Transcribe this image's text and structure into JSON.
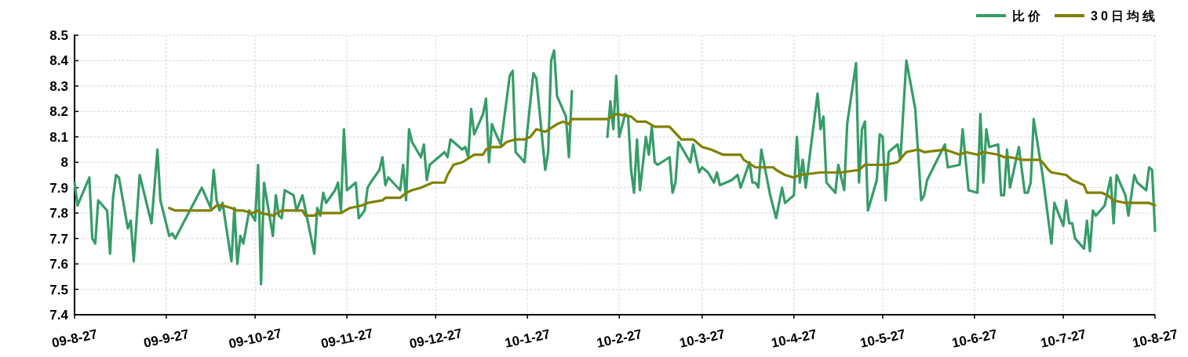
{
  "chart_data": {
    "type": "line",
    "xlim": [
      "2009-08-27",
      "2010-08-27"
    ],
    "xticks": [
      {
        "value": "2009-08-27",
        "label": "09-8-27"
      },
      {
        "value": "2009-09-27",
        "label": "09-9-27"
      },
      {
        "value": "2009-10-27",
        "label": "09-10-27"
      },
      {
        "value": "2009-11-27",
        "label": "09-11-27"
      },
      {
        "value": "2009-12-27",
        "label": "09-12-27"
      },
      {
        "value": "2010-01-27",
        "label": "10-1-27"
      },
      {
        "value": "2010-02-27",
        "label": "10-2-27"
      },
      {
        "value": "2010-03-27",
        "label": "10-3-27"
      },
      {
        "value": "2010-04-27",
        "label": "10-4-27"
      },
      {
        "value": "2010-05-27",
        "label": "10-5-27"
      },
      {
        "value": "2010-06-27",
        "label": "10-6-27"
      },
      {
        "value": "2010-07-27",
        "label": "10-7-27"
      },
      {
        "value": "2010-08-27",
        "label": "10-8-27"
      }
    ],
    "ylim": [
      7.4,
      8.5
    ],
    "yticks": [
      7.4,
      7.5,
      7.6,
      7.7,
      7.8,
      7.9,
      8,
      8.1,
      8.2,
      8.3,
      8.4,
      8.5
    ],
    "grid": true,
    "legend": "top right",
    "marker": "none",
    "line_style": "solid",
    "series": [
      {
        "name": "比价",
        "color": "#369c68",
        "x": [
          "2009-08-27",
          "2009-08-28",
          "2009-09-01",
          "2009-09-02",
          "2009-09-03",
          "2009-09-04",
          "2009-09-07",
          "2009-09-08",
          "2009-09-09",
          "2009-09-10",
          "2009-09-11",
          "2009-09-14",
          "2009-09-15",
          "2009-09-16",
          "2009-09-18",
          "2009-09-22",
          "2009-09-24",
          "2009-09-25",
          "2009-09-28",
          "2009-09-29",
          "2009-09-30",
          "2009-10-09",
          "2009-10-12",
          "2009-10-13",
          "2009-10-14",
          "2009-10-15",
          "2009-10-16",
          "2009-10-19",
          "2009-10-20",
          "2009-10-21",
          "2009-10-22",
          "2009-10-23",
          "2009-10-25",
          "2009-10-27",
          "2009-10-28",
          "2009-10-29",
          "2009-10-30",
          "2009-11-02",
          "2009-11-03",
          "2009-11-04",
          "2009-11-05",
          "2009-11-06",
          "2009-11-09",
          "2009-11-10",
          "2009-11-12",
          "2009-11-16",
          "2009-11-17",
          "2009-11-18",
          "2009-11-19",
          "2009-11-20",
          "2009-11-23",
          "2009-11-24",
          "2009-11-25",
          "2009-11-26",
          "2009-11-27",
          "2009-11-30",
          "2009-12-01",
          "2009-12-03",
          "2009-12-04",
          "2009-12-05",
          "2009-12-08",
          "2009-12-09",
          "2009-12-10",
          "2009-12-11",
          "2009-12-15",
          "2009-12-16",
          "2009-12-17",
          "2009-12-18",
          "2009-12-19",
          "2009-12-22",
          "2009-12-23",
          "2009-12-24",
          "2009-12-25",
          "2009-12-30",
          "2009-12-31",
          "2010-01-01",
          "2010-01-05",
          "2010-01-06",
          "2010-01-07",
          "2010-01-08",
          "2010-01-09",
          "2010-01-12",
          "2010-01-13",
          "2010-01-14",
          "2010-01-15",
          "2010-01-16",
          "2010-01-18",
          "2010-01-19",
          "2010-01-21",
          "2010-01-22",
          "2010-01-23",
          "2010-01-26",
          "2010-01-27",
          "2010-01-29",
          "2010-01-30",
          "2010-02-02",
          "2010-02-03",
          "2010-02-04",
          "2010-02-05",
          "2010-02-06",
          "2010-02-09",
          "2010-02-10",
          "2010-02-11",
          "2010-02-17",
          "2010-02-23",
          "2010-02-24",
          "2010-02-25",
          "2010-02-26",
          "2010-02-27",
          "2010-03-01",
          "2010-03-02",
          "2010-03-03",
          "2010-03-04",
          "2010-03-05",
          "2010-03-06",
          "2010-03-08",
          "2010-03-09",
          "2010-03-10",
          "2010-03-11",
          "2010-03-12",
          "2010-03-16",
          "2010-03-17",
          "2010-03-18",
          "2010-03-19",
          "2010-03-23",
          "2010-03-24",
          "2010-03-26",
          "2010-03-27",
          "2010-03-29",
          "2010-03-31",
          "2010-04-01",
          "2010-04-02",
          "2010-04-06",
          "2010-04-08",
          "2010-04-09",
          "2010-04-12",
          "2010-04-13",
          "2010-04-14",
          "2010-04-15",
          "2010-04-16",
          "2010-04-19",
          "2010-04-21",
          "2010-04-23",
          "2010-04-24",
          "2010-04-27",
          "2010-04-28",
          "2010-04-29",
          "2010-04-30",
          "2010-05-01",
          "2010-05-05",
          "2010-05-06",
          "2010-05-07",
          "2010-05-08",
          "2010-05-11",
          "2010-05-12",
          "2010-05-14",
          "2010-05-15",
          "2010-05-18",
          "2010-05-19",
          "2010-05-20",
          "2010-05-21",
          "2010-05-22",
          "2010-05-25",
          "2010-05-26",
          "2010-05-27",
          "2010-05-28",
          "2010-05-29",
          "2010-06-01",
          "2010-06-02",
          "2010-06-03",
          "2010-06-04",
          "2010-06-07",
          "2010-06-09",
          "2010-06-10",
          "2010-06-11",
          "2010-06-17",
          "2010-06-18",
          "2010-06-22",
          "2010-06-23",
          "2010-06-25",
          "2010-06-28",
          "2010-06-29",
          "2010-06-30",
          "2010-07-01",
          "2010-07-02",
          "2010-07-05",
          "2010-07-06",
          "2010-07-07",
          "2010-07-08",
          "2010-07-09",
          "2010-07-12",
          "2010-07-14",
          "2010-07-15",
          "2010-07-16",
          "2010-07-17",
          "2010-07-20",
          "2010-07-23",
          "2010-07-24",
          "2010-07-27",
          "2010-07-28",
          "2010-07-29",
          "2010-07-30",
          "2010-07-31",
          "2010-08-03",
          "2010-08-04",
          "2010-08-05",
          "2010-08-06",
          "2010-08-07",
          "2010-08-10",
          "2010-08-12",
          "2010-08-13",
          "2010-08-14",
          "2010-08-17",
          "2010-08-18",
          "2010-08-20",
          "2010-08-21",
          "2010-08-24",
          "2010-08-25",
          "2010-08-26",
          "2010-08-27"
        ],
        "values": [
          7.92,
          7.83,
          7.94,
          7.7,
          7.68,
          7.85,
          7.81,
          7.64,
          7.86,
          7.95,
          7.94,
          7.74,
          7.77,
          7.61,
          7.95,
          7.76,
          8.05,
          7.85,
          7.71,
          7.72,
          7.7,
          7.9,
          7.82,
          7.97,
          7.85,
          7.81,
          7.84,
          7.61,
          7.82,
          7.6,
          7.71,
          7.68,
          7.81,
          7.77,
          7.99,
          7.52,
          7.92,
          7.71,
          7.87,
          7.79,
          7.78,
          7.89,
          7.87,
          7.81,
          7.87,
          7.64,
          7.82,
          7.79,
          7.88,
          7.84,
          7.89,
          7.92,
          7.81,
          8.13,
          7.89,
          7.92,
          7.78,
          7.81,
          7.9,
          7.92,
          7.97,
          8.02,
          7.91,
          7.94,
          7.89,
          7.99,
          7.85,
          8.13,
          8.08,
          8.02,
          8.07,
          7.93,
          7.99,
          8.04,
          8.02,
          8.09,
          8.05,
          8.06,
          8.02,
          8.21,
          8.11,
          8.19,
          8.25,
          8.0,
          8.15,
          8.12,
          8.07,
          8.16,
          8.34,
          8.36,
          8.04,
          8.0,
          8.13,
          8.35,
          8.33,
          7.97,
          8.04,
          8.4,
          8.44,
          8.26,
          8.18,
          8.02,
          8.28,
          null,
          8.1,
          8.24,
          8.13,
          8.34,
          8.1,
          8.19,
          8.18,
          7.97,
          7.88,
          8.09,
          7.89,
          8.1,
          8.03,
          8.14,
          8.0,
          7.99,
          8.02,
          7.88,
          7.92,
          8.08,
          8.0,
          8.07,
          7.96,
          7.98,
          7.96,
          7.92,
          7.96,
          7.91,
          7.93,
          7.95,
          7.9,
          8.0,
          7.92,
          7.92,
          7.9,
          8.05,
          7.87,
          7.78,
          7.9,
          7.84,
          7.87,
          8.1,
          7.92,
          8.01,
          7.9,
          8.27,
          8.13,
          8.18,
          7.92,
          7.88,
          7.99,
          7.89,
          8.15,
          8.39,
          7.92,
          8.13,
          8.16,
          7.81,
          7.93,
          8.11,
          8.1,
          7.85,
          8.04,
          8.07,
          8.01,
          8.21,
          8.4,
          8.21,
          7.85,
          7.87,
          7.93,
          8.07,
          7.98,
          7.99,
          8.13,
          7.89,
          7.88,
          8.19,
          7.92,
          8.13,
          8.06,
          8.07,
          7.87,
          7.87,
          8.05,
          7.9,
          8.06,
          7.88,
          7.88,
          7.92,
          8.17,
          7.95,
          7.68,
          7.84,
          7.75,
          7.85,
          7.76,
          7.76,
          7.7,
          7.66,
          7.77,
          7.65,
          7.81,
          7.79,
          7.83,
          7.94,
          7.76,
          7.95,
          7.87,
          7.79,
          7.95,
          7.92,
          7.89,
          7.98,
          7.97,
          7.73
        ]
      },
      {
        "name": "30日均线",
        "color": "#808000",
        "x": [
          "2009-09-28",
          "2009-09-30",
          "2009-10-12",
          "2009-10-14",
          "2009-10-16",
          "2009-10-19",
          "2009-10-21",
          "2009-10-23",
          "2009-10-26",
          "2009-10-28",
          "2009-10-29",
          "2009-11-02",
          "2009-11-05",
          "2009-11-12",
          "2009-11-13",
          "2009-11-16",
          "2009-11-17",
          "2009-11-25",
          "2009-11-28",
          "2009-12-02",
          "2009-12-04",
          "2009-12-09",
          "2009-12-10",
          "2009-12-15",
          "2009-12-17",
          "2009-12-19",
          "2009-12-22",
          "2009-12-24",
          "2009-12-26",
          "2009-12-30",
          "2009-12-31",
          "2010-01-01",
          "2010-01-02",
          "2010-01-05",
          "2010-01-09",
          "2010-01-12",
          "2010-01-13",
          "2010-01-15",
          "2010-01-18",
          "2010-01-20",
          "2010-01-23",
          "2010-01-26",
          "2010-01-28",
          "2010-01-30",
          "2010-02-02",
          "2010-02-06",
          "2010-02-08",
          "2010-02-10",
          "2010-02-11",
          "2010-02-23",
          "2010-02-26",
          "2010-03-03",
          "2010-03-05",
          "2010-03-08",
          "2010-03-11",
          "2010-03-16",
          "2010-03-20",
          "2010-03-24",
          "2010-03-27",
          "2010-03-30",
          "2010-04-03",
          "2010-04-09",
          "2010-04-10",
          "2010-04-14",
          "2010-04-20",
          "2010-04-21",
          "2010-04-24",
          "2010-04-27",
          "2010-04-29",
          "2010-05-06",
          "2010-05-13",
          "2010-05-19",
          "2010-05-21",
          "2010-05-25",
          "2010-05-28",
          "2010-06-01",
          "2010-06-04",
          "2010-06-08",
          "2010-06-10",
          "2010-06-17",
          "2010-06-22",
          "2010-06-24",
          "2010-06-28",
          "2010-06-30",
          "2010-07-05",
          "2010-07-07",
          "2010-07-09",
          "2010-07-13",
          "2010-07-19",
          "2010-07-20",
          "2010-07-22",
          "2010-07-23",
          "2010-07-28",
          "2010-07-30",
          "2010-08-03",
          "2010-08-04",
          "2010-08-09",
          "2010-08-11",
          "2010-08-13",
          "2010-08-17",
          "2010-08-25",
          "2010-08-27"
        ],
        "values": [
          7.82,
          7.81,
          7.81,
          7.83,
          7.83,
          7.82,
          7.81,
          7.81,
          7.8,
          7.81,
          7.8,
          7.79,
          7.81,
          7.81,
          7.79,
          7.79,
          7.8,
          7.8,
          7.82,
          7.83,
          7.84,
          7.85,
          7.86,
          7.86,
          7.88,
          7.89,
          7.9,
          7.91,
          7.92,
          7.92,
          7.95,
          7.97,
          7.99,
          8.0,
          8.03,
          8.03,
          8.05,
          8.06,
          8.06,
          8.08,
          8.09,
          8.09,
          8.1,
          8.13,
          8.12,
          8.15,
          8.16,
          8.15,
          8.17,
          8.17,
          8.19,
          8.18,
          8.16,
          8.16,
          8.14,
          8.14,
          8.09,
          8.09,
          8.06,
          8.05,
          8.03,
          8.03,
          8.01,
          7.98,
          7.98,
          7.97,
          7.95,
          7.94,
          7.95,
          7.96,
          7.96,
          7.97,
          7.99,
          7.99,
          7.99,
          8.0,
          8.04,
          8.05,
          8.04,
          8.05,
          8.03,
          8.04,
          8.03,
          8.04,
          8.03,
          8.02,
          8.02,
          8.01,
          8.01,
          8.0,
          7.97,
          7.96,
          7.95,
          7.93,
          7.91,
          7.88,
          7.88,
          7.87,
          7.85,
          7.84,
          7.84,
          7.83
        ]
      }
    ]
  }
}
